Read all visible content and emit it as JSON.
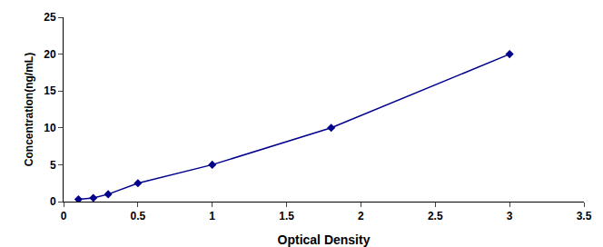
{
  "chart_data": {
    "type": "line",
    "x": [
      0.1,
      0.2,
      0.3,
      0.5,
      1.0,
      1.8,
      3.0
    ],
    "values": [
      0.3,
      0.5,
      1.0,
      2.5,
      5.0,
      10.0,
      20.0
    ],
    "xlabel": "Optical Density",
    "ylabel": "Concentration(ng/mL)",
    "xlim": [
      0,
      3.5
    ],
    "ylim": [
      0,
      25
    ],
    "xticks": [
      0,
      0.5,
      1.0,
      1.5,
      2.0,
      2.5,
      3.0,
      3.5
    ],
    "yticks": [
      0,
      5,
      10,
      15,
      20,
      25
    ],
    "color": "#00008B",
    "marker": "diamond",
    "line_style": "solid",
    "grid": false
  }
}
